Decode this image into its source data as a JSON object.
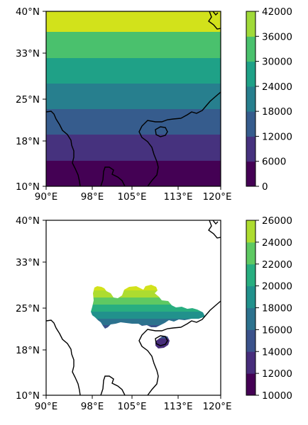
{
  "panels": [
    {
      "lon_ticks": [
        "90°E",
        "98°E",
        "105°E",
        "113°E",
        "120°E"
      ],
      "lat_ticks": [
        "10°N",
        "18°N",
        "25°N",
        "33°N",
        "40°N"
      ],
      "colorbar": {
        "ticks": [
          "0",
          "6000",
          "12000",
          "18000",
          "24000",
          "30000",
          "36000",
          "42000"
        ],
        "colors": [
          "#440154",
          "#46327e",
          "#365c8d",
          "#277f8e",
          "#1fa187",
          "#4ac16d",
          "#a0da39"
        ]
      },
      "bands": [
        "#440154",
        "#46327e",
        "#365c8d",
        "#277f8e",
        "#1fa187",
        "#4ac16d",
        "#a0da39",
        "#d2e21b"
      ]
    },
    {
      "lon_ticks": [
        "90°E",
        "98°E",
        "105°E",
        "113°E",
        "120°E"
      ],
      "lat_ticks": [
        "10°N",
        "18°N",
        "25°N",
        "33°N",
        "40°N"
      ],
      "colorbar": {
        "ticks": [
          "10000",
          "12000",
          "14000",
          "16000",
          "18000",
          "20000",
          "22000",
          "24000",
          "26000"
        ],
        "colors": [
          "#440154",
          "#472d7b",
          "#3b528b",
          "#2c728e",
          "#21918c",
          "#28ae80",
          "#5ec962",
          "#addc30"
        ]
      },
      "bands": [
        "#472d7b",
        "#3b528b",
        "#2c728e",
        "#21918c",
        "#28ae80",
        "#5ec962",
        "#addc30",
        "#d2e21b"
      ]
    }
  ],
  "chart_data": [
    {
      "type": "heatmap",
      "title": "",
      "xlabel": "",
      "ylabel": "",
      "xlim": [
        90,
        120
      ],
      "ylim": [
        10,
        40
      ],
      "description_of_field": "zonal bands increasing with latitude",
      "colorbar_range": [
        0,
        42000
      ]
    },
    {
      "type": "heatmap",
      "title": "",
      "xlabel": "",
      "ylabel": "",
      "xlim": [
        90,
        120
      ],
      "ylim": [
        10,
        40
      ],
      "colorbar_range": [
        10000,
        26000
      ]
    }
  ]
}
